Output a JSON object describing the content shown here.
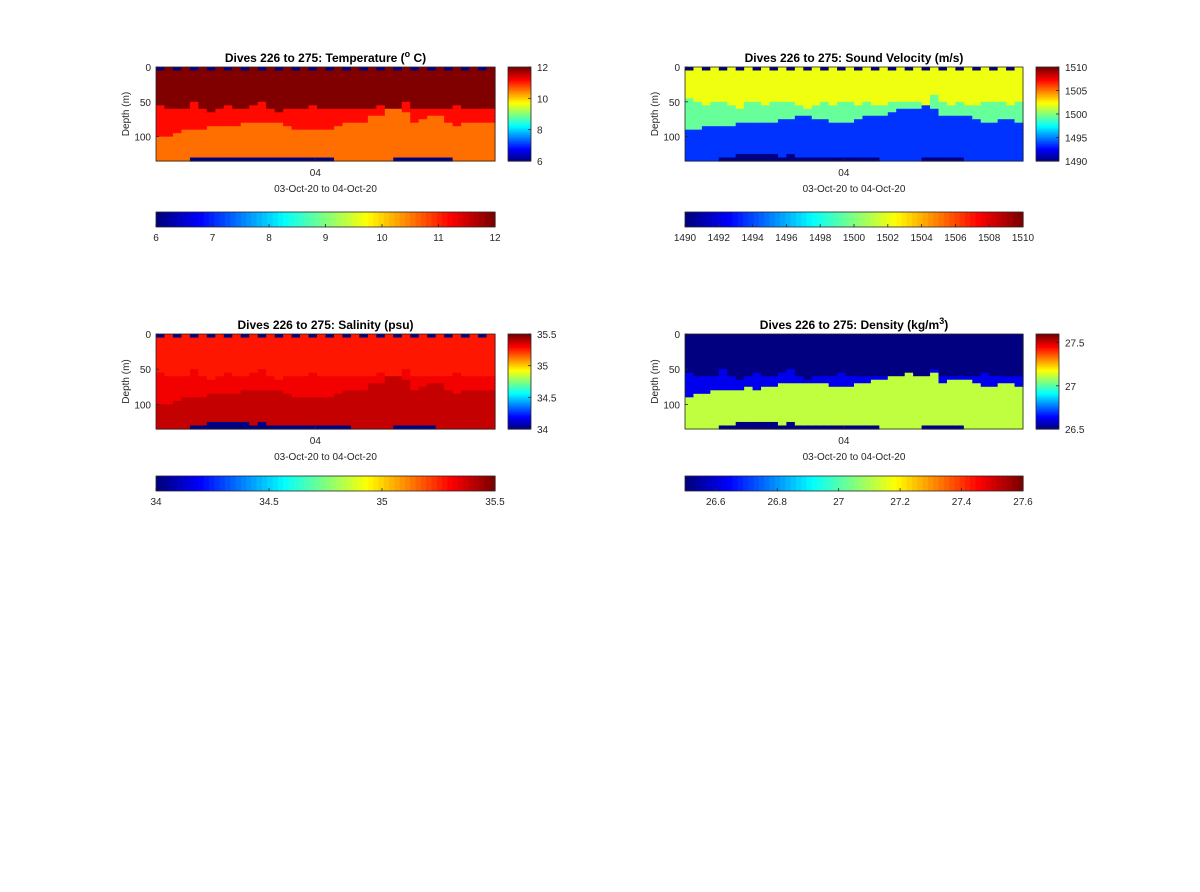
{
  "chart_data": [
    {
      "type": "heatmap",
      "title": "Dives 226 to 275: Temperature (",
      "title_sup": "o",
      "title_after": " C)",
      "ylabel": "Depth (m)",
      "xlabel": "03-Oct-20 to 04-Oct-20",
      "x_tick_labels": [
        "04"
      ],
      "y_tick_labels": [
        "0",
        "50",
        "100"
      ],
      "y_ticks": [
        0,
        50,
        100
      ],
      "ylim": [
        0,
        135
      ],
      "y_reversed": true,
      "colormap": "jet",
      "color_range": [
        6,
        12
      ],
      "colorbar_ticks": [
        6,
        8,
        10,
        12
      ],
      "colorbar_tick_labels": [
        "6",
        "8",
        "10",
        "12"
      ],
      "horizontal_colorbar_ticks": [
        6,
        7,
        8,
        9,
        10,
        11,
        12
      ],
      "horizontal_colorbar_tick_labels": [
        "6",
        "7",
        "8",
        "9",
        "10",
        "11",
        "12"
      ],
      "profile": {
        "upper_value": 12,
        "mid_value": 11.2,
        "lower_value": 10.6,
        "thermocline_depths": [
          55,
          60,
          62,
          58,
          50,
          62,
          65,
          60,
          55,
          62,
          60,
          55,
          52,
          62,
          65,
          60,
          58,
          62,
          55,
          60,
          62,
          58,
          60,
          62,
          60,
          58,
          55,
          60,
          62,
          50,
          60,
          62,
          58,
          60,
          62,
          55,
          60,
          58,
          62,
          60
        ],
        "deep_transition_depths": [
          100,
          98,
          95,
          92,
          90,
          88,
          86,
          85,
          84,
          83,
          82,
          80,
          80,
          80,
          82,
          85,
          88,
          90,
          92,
          90,
          88,
          85,
          82,
          80,
          78,
          72,
          70,
          62,
          48,
          65,
          78,
          75,
          72,
          70,
          80,
          85,
          82,
          80,
          78,
          82
        ],
        "bottom_depths": [
          135,
          135,
          135,
          135,
          132,
          130,
          131,
          130,
          132,
          131,
          130,
          131,
          131,
          129,
          131,
          132,
          130,
          131,
          132,
          131,
          132,
          133,
          133,
          133,
          134,
          135,
          135,
          133,
          132,
          131,
          132,
          131,
          132,
          131,
          132,
          133,
          133,
          134,
          135,
          135
        ],
        "bottom_value": 6,
        "surface_gap_value": 6
      }
    },
    {
      "type": "heatmap",
      "title": "Dives 226 to 275: Sound Velocity (m/s)",
      "ylabel": "Depth (m)",
      "xlabel": "03-Oct-20 to 04-Oct-20",
      "x_tick_labels": [
        "04"
      ],
      "y_tick_labels": [
        "0",
        "50",
        "100"
      ],
      "y_ticks": [
        0,
        50,
        100
      ],
      "ylim": [
        0,
        135
      ],
      "y_reversed": true,
      "colormap": "jet",
      "color_range": [
        1490,
        1510
      ],
      "colorbar_ticks": [
        1490,
        1495,
        1500,
        1505,
        1510
      ],
      "colorbar_tick_labels": [
        "1490",
        "1495",
        "1500",
        "1505",
        "1510"
      ],
      "horizontal_colorbar_ticks": [
        1490,
        1492,
        1494,
        1496,
        1498,
        1500,
        1502,
        1504,
        1506,
        1508,
        1510
      ],
      "horizontal_colorbar_tick_labels": [
        "1490",
        "1492",
        "1494",
        "1496",
        "1498",
        "1500",
        "1502",
        "1504",
        "1506",
        "1508",
        "1510"
      ],
      "profile": {
        "upper_value": 1502.2,
        "mid_value": 1499.5,
        "lower_value": 1493.5,
        "thermocline_depths": [
          45,
          52,
          55,
          50,
          48,
          55,
          58,
          52,
          50,
          55,
          52,
          50,
          48,
          55,
          58,
          55,
          52,
          55,
          50,
          52,
          55,
          52,
          55,
          55,
          52,
          50,
          48,
          52,
          55,
          40,
          52,
          55,
          52,
          55,
          55,
          50,
          52,
          50,
          55,
          52
        ],
        "deep_transition_depths": [
          92,
          88,
          86,
          85,
          84,
          84,
          82,
          80,
          82,
          80,
          78,
          76,
          74,
          72,
          72,
          74,
          76,
          78,
          80,
          78,
          76,
          72,
          70,
          68,
          66,
          62,
          60,
          58,
          44,
          60,
          72,
          70,
          68,
          70,
          76,
          80,
          78,
          76,
          74,
          78
        ],
        "bottom_depths": [
          135,
          134,
          134,
          133,
          130,
          128,
          127,
          126,
          125,
          126,
          127,
          128,
          127,
          128,
          129,
          130,
          131,
          130,
          131,
          132,
          132,
          131,
          132,
          133,
          133,
          134,
          134,
          133,
          132,
          132,
          132,
          131,
          132,
          133,
          133,
          134,
          134,
          134,
          135,
          135
        ],
        "bottom_value": 1490,
        "surface_gap_value": 1490
      }
    },
    {
      "type": "heatmap",
      "title": "Dives 226 to 275: Salinity (psu)",
      "ylabel": "Depth (m)",
      "xlabel": "03-Oct-20 to 04-Oct-20",
      "x_tick_labels": [
        "04"
      ],
      "y_tick_labels": [
        "0",
        "50",
        "100"
      ],
      "y_ticks": [
        0,
        50,
        100
      ],
      "ylim": [
        0,
        135
      ],
      "y_reversed": true,
      "colormap": "jet",
      "color_range": [
        34,
        35.5
      ],
      "colorbar_ticks": [
        34,
        34.5,
        35,
        35.5
      ],
      "colorbar_tick_labels": [
        "34",
        "34.5",
        "35",
        "35.5"
      ],
      "horizontal_colorbar_ticks": [
        34,
        34.5,
        35,
        35.5
      ],
      "horizontal_colorbar_tick_labels": [
        "34",
        "34.5",
        "35",
        "35.5"
      ],
      "profile": {
        "upper_value": 35.28,
        "mid_value": 35.33,
        "lower_value": 35.4,
        "thermocline_depths": [
          55,
          60,
          62,
          58,
          50,
          62,
          65,
          60,
          55,
          62,
          60,
          55,
          52,
          62,
          65,
          60,
          58,
          62,
          55,
          60,
          62,
          58,
          60,
          62,
          60,
          58,
          55,
          60,
          62,
          50,
          60,
          62,
          58,
          60,
          62,
          55,
          60,
          58,
          62,
          60
        ],
        "deep_transition_depths": [
          100,
          98,
          95,
          92,
          90,
          88,
          86,
          85,
          84,
          83,
          82,
          80,
          80,
          80,
          82,
          85,
          88,
          90,
          92,
          90,
          88,
          85,
          82,
          80,
          78,
          72,
          70,
          62,
          48,
          65,
          78,
          75,
          72,
          70,
          80,
          85,
          82,
          80,
          78,
          82
        ],
        "bottom_depths": [
          135,
          134,
          134,
          133,
          130,
          128,
          127,
          126,
          125,
          126,
          127,
          128,
          127,
          128,
          129,
          130,
          131,
          130,
          131,
          132,
          132,
          131,
          132,
          133,
          133,
          134,
          134,
          133,
          132,
          132,
          132,
          131,
          132,
          133,
          133,
          134,
          134,
          134,
          135,
          135
        ],
        "bottom_value": 34,
        "surface_gap_value": 34
      }
    },
    {
      "type": "heatmap",
      "title": "Dives 226 to 275: Density (kg/m",
      "title_sup": "3",
      "title_after": ")",
      "ylabel": "Depth (m)",
      "xlabel": "03-Oct-20 to 04-Oct-20",
      "x_tick_labels": [
        "04"
      ],
      "y_tick_labels": [
        "0",
        "50",
        "100"
      ],
      "y_ticks": [
        0,
        50,
        100
      ],
      "ylim": [
        0,
        135
      ],
      "y_reversed": true,
      "colormap": "jet",
      "color_range": [
        26.5,
        27.6
      ],
      "colorbar_ticks": [
        26.5,
        27,
        27.5
      ],
      "colorbar_tick_labels": [
        "26.5",
        "27",
        "27.5"
      ],
      "horizontal_colorbar_ticks": [
        26.6,
        26.8,
        27,
        27.2,
        27.4,
        27.6
      ],
      "horizontal_colorbar_tick_labels": [
        "26.6",
        "26.8",
        "27",
        "27.2",
        "27.4",
        "27.6"
      ],
      "profile": {
        "upper_value": 26.5,
        "mid_value": 26.62,
        "lower_value": 27.12,
        "thermocline_depths": [
          55,
          60,
          62,
          58,
          50,
          62,
          65,
          60,
          55,
          62,
          60,
          55,
          52,
          62,
          65,
          60,
          58,
          62,
          55,
          60,
          62,
          58,
          60,
          62,
          60,
          58,
          55,
          60,
          62,
          50,
          60,
          62,
          58,
          60,
          62,
          55,
          60,
          58,
          62,
          60
        ],
        "deep_transition_depths": [
          90,
          86,
          84,
          82,
          82,
          80,
          78,
          76,
          78,
          76,
          74,
          72,
          70,
          68,
          68,
          70,
          72,
          74,
          76,
          74,
          72,
          68,
          66,
          64,
          62,
          58,
          56,
          54,
          40,
          56,
          68,
          66,
          64,
          66,
          72,
          76,
          74,
          72,
          70,
          74
        ],
        "bottom_depths": [
          135,
          134,
          134,
          133,
          130,
          128,
          127,
          126,
          125,
          126,
          127,
          128,
          127,
          128,
          129,
          130,
          131,
          130,
          131,
          132,
          132,
          131,
          132,
          133,
          133,
          134,
          134,
          133,
          132,
          132,
          132,
          131,
          132,
          133,
          133,
          134,
          134,
          134,
          135,
          135
        ],
        "bottom_value": 26.5,
        "surface_gap_value": 26.5
      }
    }
  ]
}
